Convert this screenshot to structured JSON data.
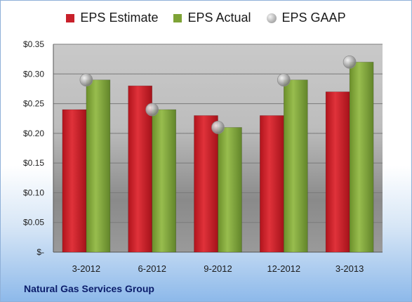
{
  "chart_data": {
    "type": "bar",
    "categories": [
      "3-2012",
      "6-2012",
      "9-2012",
      "12-2012",
      "3-2013"
    ],
    "series": [
      {
        "name": "EPS Estimate",
        "values": [
          0.24,
          0.28,
          0.23,
          0.23,
          0.27
        ],
        "color": "#c8202a"
      },
      {
        "name": "EPS Actual",
        "values": [
          0.29,
          0.24,
          0.21,
          0.29,
          0.32
        ],
        "color": "#7ea336"
      },
      {
        "name": "EPS GAAP",
        "values": [
          0.29,
          0.24,
          0.21,
          0.29,
          0.32
        ],
        "marker": "sphere"
      }
    ],
    "ylim": [
      0,
      0.35
    ],
    "yticks": [
      0,
      0.05,
      0.1,
      0.15,
      0.2,
      0.25,
      0.3,
      0.35
    ],
    "ytick_labels": [
      "$-",
      "$0.05",
      "$0.10",
      "$0.15",
      "$0.20",
      "$0.25",
      "$0.30",
      "$0.35"
    ],
    "grid": true,
    "legend_position": "top"
  },
  "footer": {
    "company": "Natural Gas Services Group"
  }
}
